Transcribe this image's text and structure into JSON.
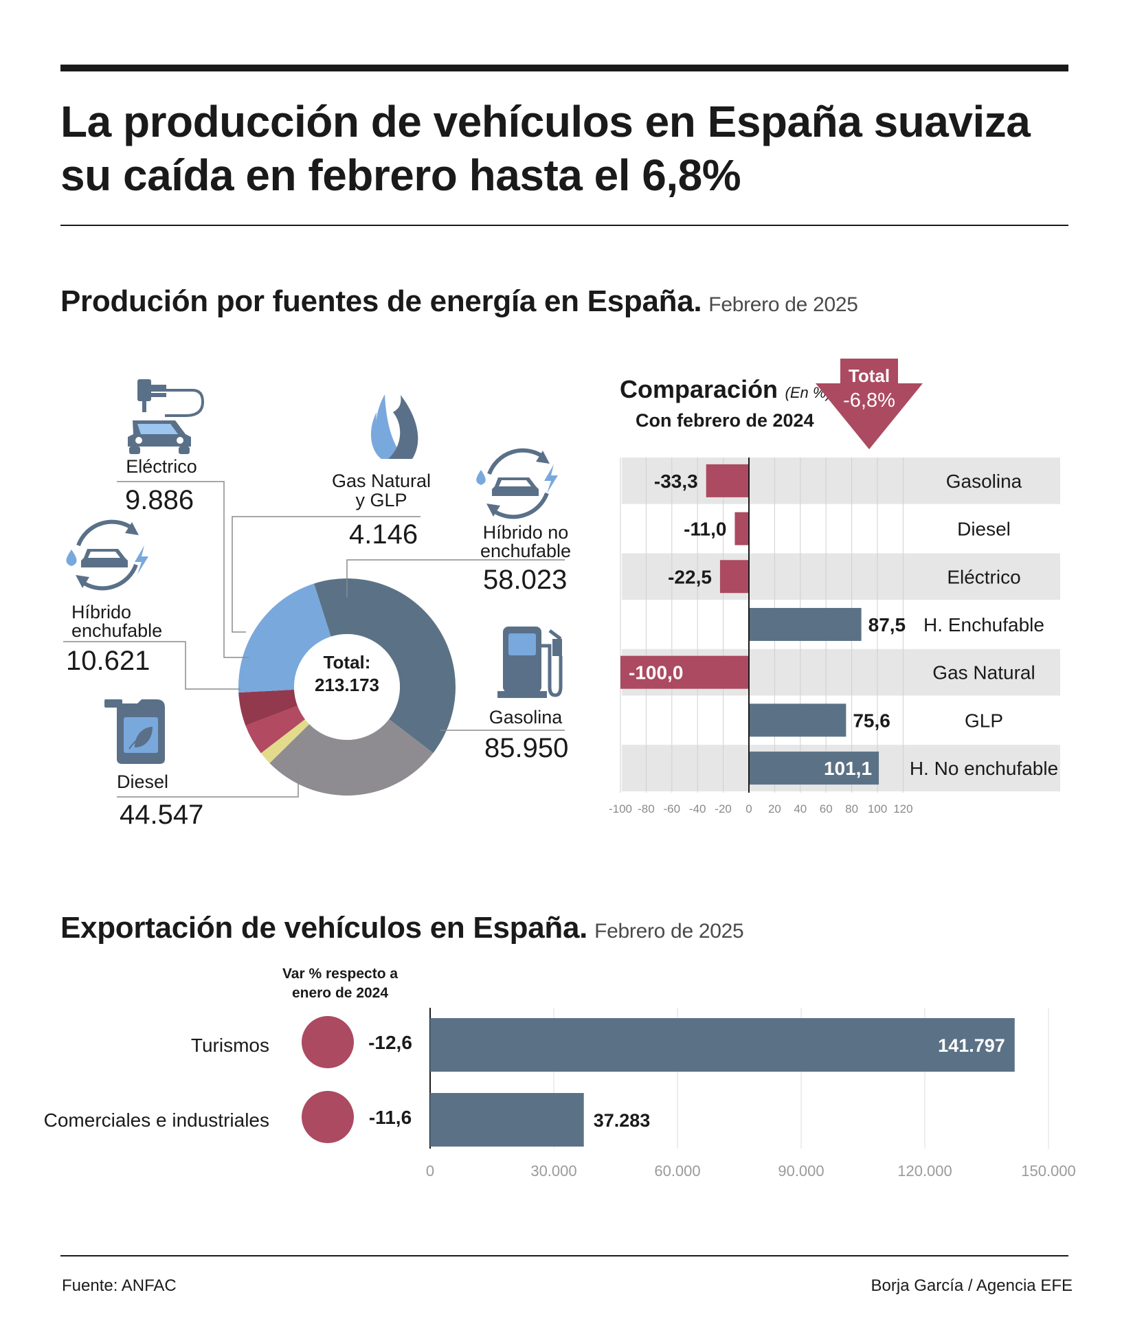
{
  "headline": "La producción de vehículos en España suaviza su caída en febrero hasta el 6,8%",
  "section1": {
    "title": "Produción por fuentes de energía en España.",
    "subtitle": "Febrero de 2025"
  },
  "donut": {
    "center_label": "Total:",
    "center_value": "213.173",
    "labels": {
      "electrico": {
        "name": "Eléctrico",
        "value": "9.886"
      },
      "gas": {
        "name_line1": "Gas Natural",
        "name_line2": "y GLP",
        "value": "4.146"
      },
      "hibrido_no": {
        "name_line1": "Híbrido no",
        "name_line2": "enchufable",
        "value": "58.023"
      },
      "hibrido_enchufable": {
        "name_line1": "Híbrido",
        "name_line2": "enchufable",
        "value": "10.621"
      },
      "gasolina": {
        "name": "Gasolina",
        "value": "85.950"
      },
      "diesel": {
        "name": "Diesel",
        "value": "44.547"
      }
    }
  },
  "comparison": {
    "title": "Comparación",
    "unit": "(En %)",
    "subtitle": "Con febrero de 2024",
    "total_label": "Total",
    "total_value": "-6,8%",
    "ticks": [
      "-100",
      "-80",
      "-60",
      "-40",
      "-20",
      "0",
      "20",
      "40",
      "60",
      "80",
      "100",
      "120"
    ]
  },
  "section2": {
    "title": "Exportación de vehículos en España.",
    "subtitle": "Febrero de 2025",
    "var_header_line1": "Var % respecto a",
    "var_header_line2": "enero de 2024",
    "rows": [
      {
        "label": "Turismos",
        "var": "-12,6",
        "value_label": "141.797"
      },
      {
        "label": "Comerciales e industriales",
        "var": "-11,6",
        "value_label": "37.283"
      }
    ],
    "ticks": [
      "0",
      "30.000",
      "60.000",
      "90.000",
      "120.000",
      "150.000"
    ]
  },
  "footer": {
    "source": "Fuente: ANFAC",
    "credit": "Borja García / Agencia EFE"
  },
  "colors": {
    "gasolina": "#5b7286",
    "hibrido_no": "#8e8c91",
    "gas": "#e2db8c",
    "electrico": "#b24a61",
    "hibrido_enchufable": "#93394e",
    "diesel": "#79a8dc",
    "negative": "#ab4a60",
    "positive": "#5b7286",
    "band": "#e6e6e6",
    "icon": "#5a7088"
  },
  "chart_data": [
    {
      "type": "pie",
      "title": "Produción por fuentes de energía en España.",
      "categories": [
        "Gasolina",
        "Híbrido no enchufable",
        "Gas Natural y GLP",
        "Eléctrico",
        "Híbrido enchufable",
        "Diesel"
      ],
      "values": [
        85950,
        58023,
        4146,
        9886,
        10621,
        44547
      ]
    },
    {
      "type": "bar",
      "orientation": "horizontal",
      "title": "Comparación",
      "categories": [
        "Gasolina",
        "Diesel",
        "Eléctrico",
        "H. Enchufable",
        "Gas Natural",
        "GLP",
        "H. No enchufable"
      ],
      "values": [
        -33.3,
        -11.0,
        -22.5,
        87.5,
        -100.0,
        75.6,
        101.1
      ],
      "value_labels": [
        "-33,3",
        "-11,0",
        "-22,5",
        "87,5",
        "-100,0",
        "75,6",
        "101,1"
      ],
      "xlim": [
        -100,
        120
      ]
    },
    {
      "type": "bar",
      "orientation": "horizontal",
      "title": "Exportación de vehículos en España.",
      "categories": [
        "Turismos",
        "Comerciales e industriales"
      ],
      "values": [
        141797,
        37283
      ],
      "var_pct": [
        -12.6,
        -11.6
      ],
      "xlim": [
        0,
        150000
      ]
    }
  ]
}
